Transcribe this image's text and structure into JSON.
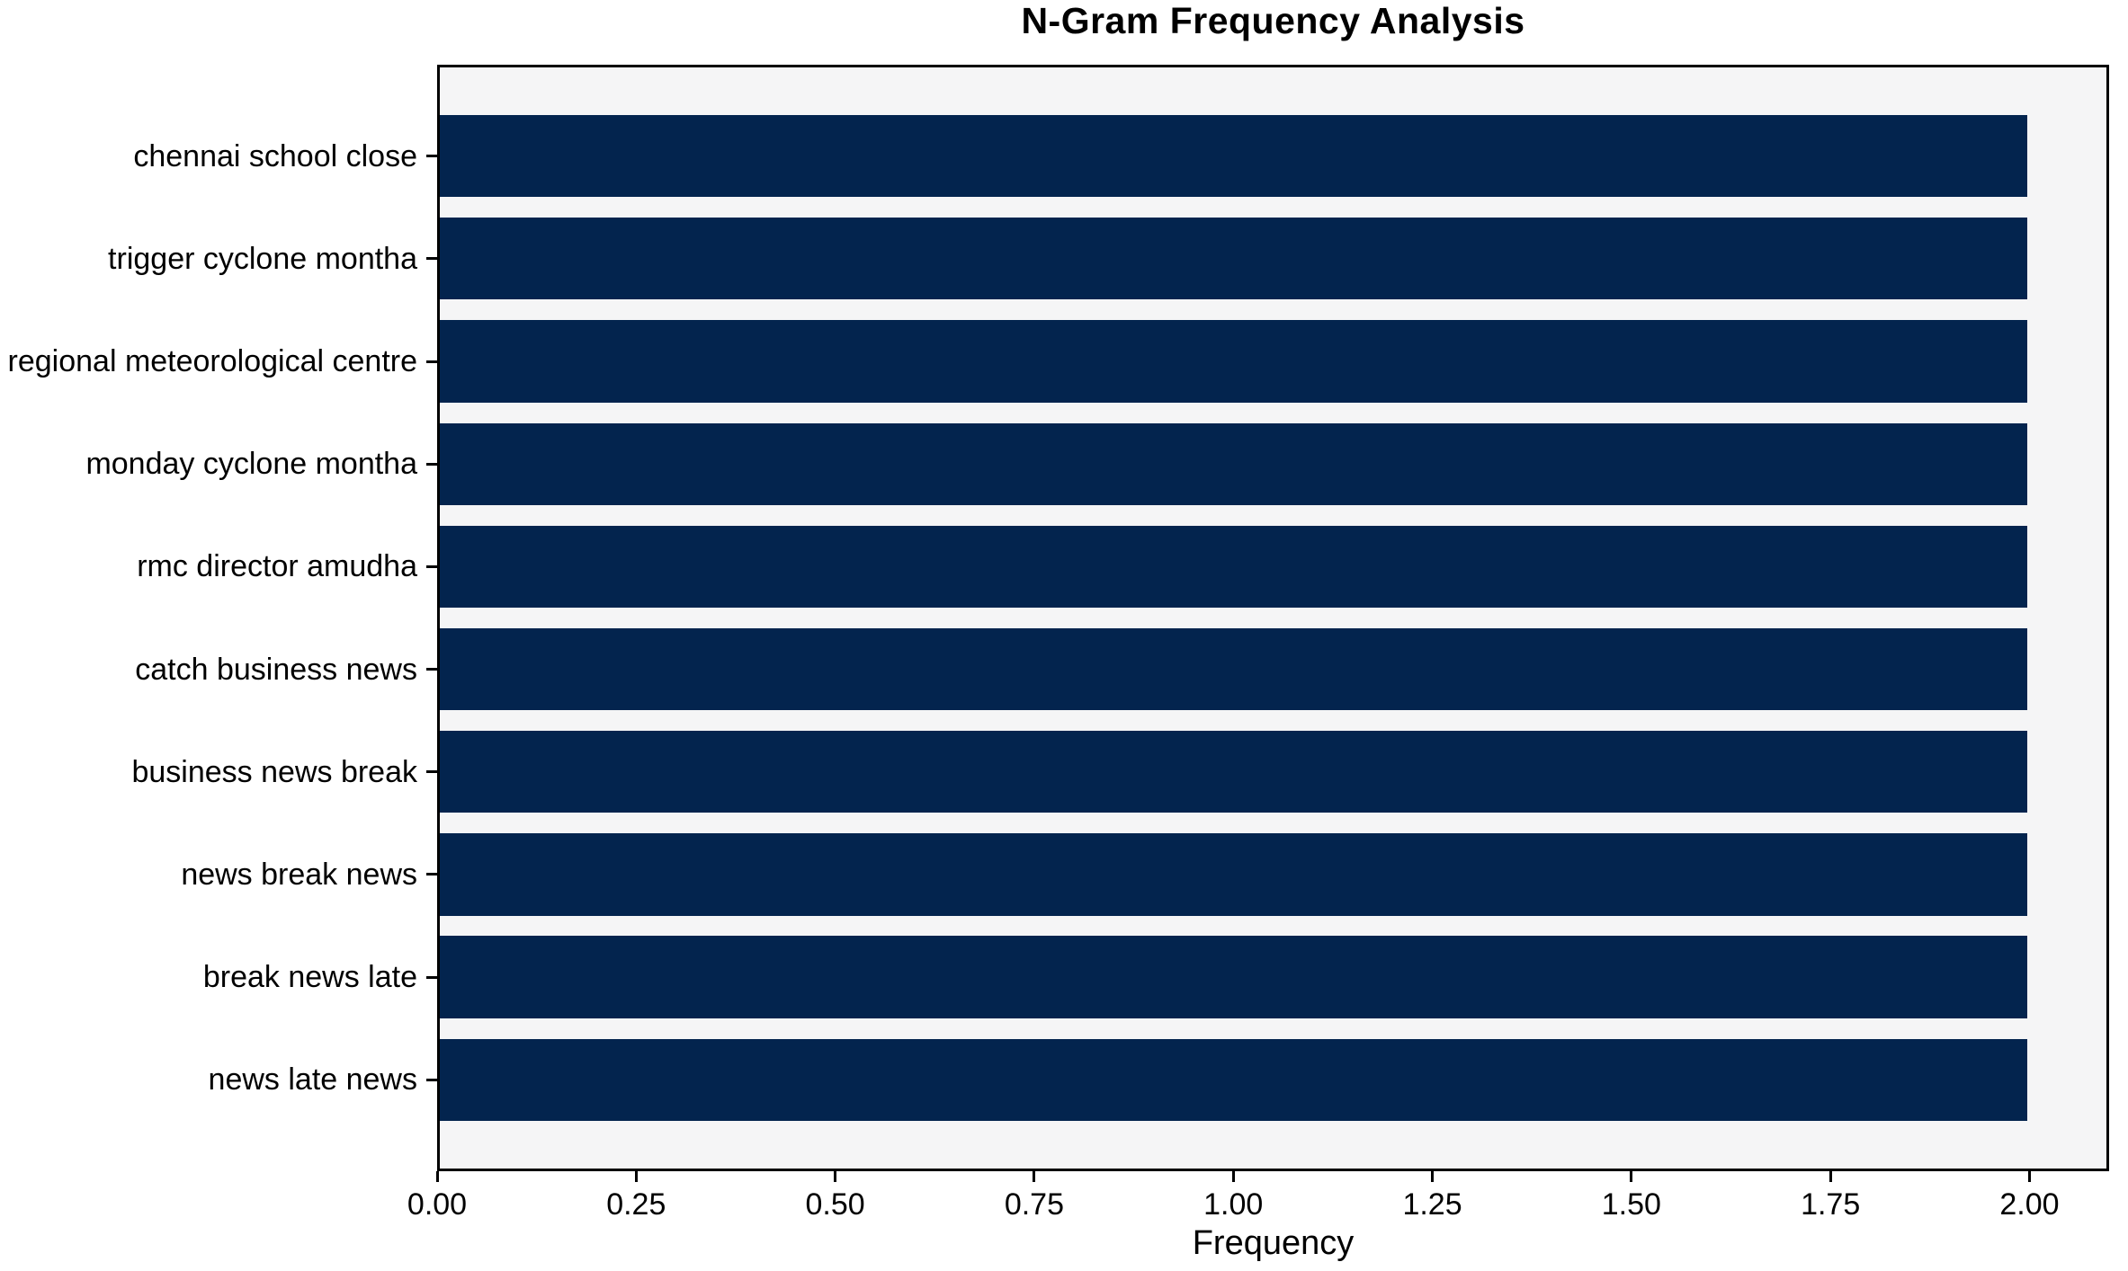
{
  "chart_data": {
    "type": "bar",
    "orientation": "horizontal",
    "title": "N-Gram Frequency Analysis",
    "xlabel": "Frequency",
    "ylabel": "",
    "categories": [
      "chennai school close",
      "trigger cyclone montha",
      "regional meteorological centre",
      "monday cyclone montha",
      "rmc director amudha",
      "catch business news",
      "business news break",
      "news break news",
      "break news late",
      "news late news"
    ],
    "values": [
      2.0,
      2.0,
      2.0,
      2.0,
      2.0,
      2.0,
      2.0,
      2.0,
      2.0,
      2.0
    ],
    "xlim": [
      0,
      2.1
    ],
    "xtick_labels": [
      "0.00",
      "0.25",
      "0.50",
      "0.75",
      "1.00",
      "1.25",
      "1.50",
      "1.75",
      "2.00"
    ],
    "xtick_values": [
      0,
      0.25,
      0.5,
      0.75,
      1.0,
      1.25,
      1.5,
      1.75,
      2.0
    ],
    "grid": false,
    "legend": null,
    "colors": {
      "bar": "#03244e",
      "plot_bg": "#f5f5f6",
      "figure_bg": "#ffffff",
      "spine": "#000000",
      "text": "#000000"
    }
  }
}
